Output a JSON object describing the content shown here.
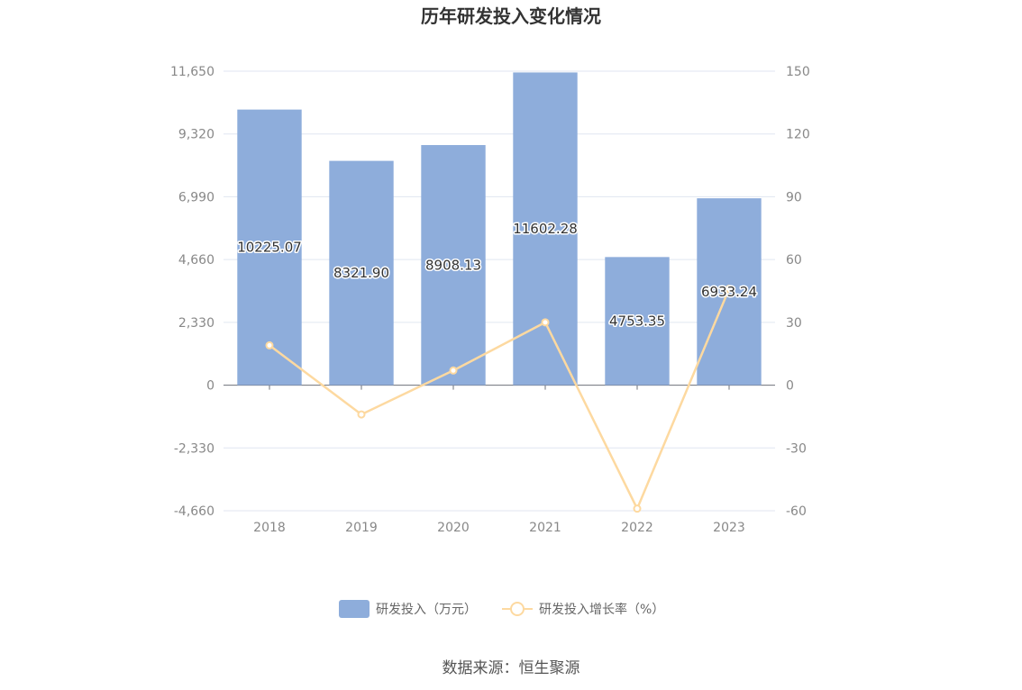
{
  "chart_data": {
    "type": "bar",
    "title": "历年研发投入变化情况",
    "categories": [
      "2018",
      "2019",
      "2020",
      "2021",
      "2022",
      "2023"
    ],
    "series": [
      {
        "name": "研发投入（万元）",
        "type": "bar",
        "axis": "left",
        "color": "#8eaddb",
        "values": [
          10225.07,
          8321.9,
          8908.13,
          11602.28,
          4753.35,
          6933.24
        ],
        "labels": [
          "10225.07",
          "8321.90",
          "8908.13",
          "11602.28",
          "4753.35",
          "6933.24"
        ]
      },
      {
        "name": "研发投入增长率（%）",
        "type": "line",
        "axis": "right",
        "color": "#fdd9a0",
        "values": [
          19.0,
          -14.0,
          7.0,
          30.0,
          -59.0,
          46.0
        ]
      }
    ],
    "y_left": {
      "min": -4660,
      "max": 11650,
      "ticks": [
        "11,650",
        "9,320",
        "6,990",
        "4,660",
        "2,330",
        "0",
        "-2,330",
        "-4,660"
      ]
    },
    "y_right": {
      "min": -60,
      "max": 150,
      "ticks": [
        "150",
        "120",
        "90",
        "60",
        "30",
        "0",
        "-30",
        "-60"
      ]
    },
    "grid": true,
    "legend": "bottom-center",
    "source": "数据来源：恒生聚源"
  }
}
